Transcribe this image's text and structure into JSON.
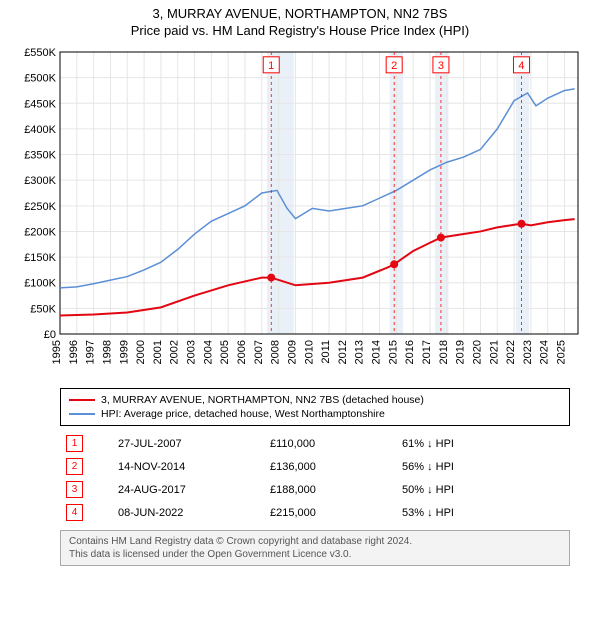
{
  "title_line1": "3, MURRAY AVENUE, NORTHAMPTON, NN2 7BS",
  "title_line2": "Price paid vs. HM Land Registry's House Price Index (HPI)",
  "chart": {
    "type": "line",
    "background_color": "#ffffff",
    "grid_color": "#e6e6e6",
    "band_color": "#eaf0f8",
    "x_years": [
      1995,
      1996,
      1997,
      1998,
      1999,
      2000,
      2001,
      2002,
      2003,
      2004,
      2005,
      2006,
      2007,
      2008,
      2009,
      2010,
      2011,
      2012,
      2013,
      2014,
      2015,
      2016,
      2017,
      2018,
      2019,
      2020,
      2021,
      2022,
      2023,
      2024,
      2025
    ],
    "x_min": 1995,
    "x_max": 2025.8,
    "ylim": [
      0,
      550000
    ],
    "ytick_step": 50000,
    "y_ticks": [
      "£0",
      "£50K",
      "£100K",
      "£150K",
      "£200K",
      "£250K",
      "£300K",
      "£350K",
      "£400K",
      "£450K",
      "£500K",
      "£550K"
    ],
    "shaded_bands": [
      {
        "from": 2007.3,
        "to": 2008.9
      },
      {
        "from": 2014.6,
        "to": 2015.4
      },
      {
        "from": 2017.3,
        "to": 2018.1
      },
      {
        "from": 2022.1,
        "to": 2022.9
      }
    ],
    "markers": [
      {
        "n": "1",
        "x": 2007.56,
        "y_badge": 525000
      },
      {
        "n": "2",
        "x": 2014.87,
        "y_badge": 525000
      },
      {
        "n": "3",
        "x": 2017.65,
        "y_badge": 525000
      },
      {
        "n": "4",
        "x": 2022.44,
        "y_badge": 525000
      }
    ],
    "series_hpi": {
      "label": "HPI: Average price, detached house, West Northamptonshire",
      "color": "#5b8fd6",
      "line_width": 1.5,
      "points": [
        [
          1995,
          90000
        ],
        [
          1996,
          92000
        ],
        [
          1997,
          98000
        ],
        [
          1998,
          105000
        ],
        [
          1999,
          112000
        ],
        [
          2000,
          125000
        ],
        [
          2001,
          140000
        ],
        [
          2002,
          165000
        ],
        [
          2003,
          195000
        ],
        [
          2004,
          220000
        ],
        [
          2005,
          235000
        ],
        [
          2006,
          250000
        ],
        [
          2007,
          275000
        ],
        [
          2007.9,
          280000
        ],
        [
          2008.5,
          245000
        ],
        [
          2009,
          225000
        ],
        [
          2010,
          245000
        ],
        [
          2011,
          240000
        ],
        [
          2012,
          245000
        ],
        [
          2013,
          250000
        ],
        [
          2014,
          265000
        ],
        [
          2015,
          280000
        ],
        [
          2016,
          300000
        ],
        [
          2017,
          320000
        ],
        [
          2018,
          335000
        ],
        [
          2019,
          345000
        ],
        [
          2020,
          360000
        ],
        [
          2021,
          400000
        ],
        [
          2022,
          455000
        ],
        [
          2022.8,
          470000
        ],
        [
          2023.3,
          445000
        ],
        [
          2024,
          460000
        ],
        [
          2025,
          475000
        ],
        [
          2025.6,
          478000
        ]
      ]
    },
    "series_price": {
      "label": "3, MURRAY AVENUE, NORTHAMPTON, NN2 7BS (detached house)",
      "color": "#e30613",
      "line_width": 2,
      "points": [
        [
          1995,
          36000
        ],
        [
          1997,
          38000
        ],
        [
          1999,
          42000
        ],
        [
          2001,
          52000
        ],
        [
          2003,
          75000
        ],
        [
          2005,
          95000
        ],
        [
          2007,
          110000
        ],
        [
          2007.56,
          110000
        ],
        [
          2009,
          95000
        ],
        [
          2011,
          100000
        ],
        [
          2013,
          110000
        ],
        [
          2014.5,
          130000
        ],
        [
          2014.87,
          136000
        ],
        [
          2016,
          162000
        ],
        [
          2017,
          178000
        ],
        [
          2017.65,
          188000
        ],
        [
          2018,
          190000
        ],
        [
          2019,
          195000
        ],
        [
          2020,
          200000
        ],
        [
          2021,
          208000
        ],
        [
          2022,
          213000
        ],
        [
          2022.44,
          215000
        ],
        [
          2023,
          212000
        ],
        [
          2024,
          218000
        ],
        [
          2025,
          222000
        ],
        [
          2025.6,
          224000
        ]
      ],
      "sale_dots": [
        {
          "x": 2007.56,
          "y": 110000
        },
        {
          "x": 2014.87,
          "y": 136000
        },
        {
          "x": 2017.65,
          "y": 188000
        },
        {
          "x": 2022.44,
          "y": 215000
        }
      ]
    }
  },
  "legend": {
    "item1_color": "#e30613",
    "item1_label": "3, MURRAY AVENUE, NORTHAMPTON, NN2 7BS (detached house)",
    "item2_color": "#5b8fd6",
    "item2_label": "HPI: Average price, detached house, West Northamptonshire"
  },
  "sales": [
    {
      "n": "1",
      "date": "27-JUL-2007",
      "price": "£110,000",
      "vs": "61% ↓ HPI"
    },
    {
      "n": "2",
      "date": "14-NOV-2014",
      "price": "£136,000",
      "vs": "56% ↓ HPI"
    },
    {
      "n": "3",
      "date": "24-AUG-2017",
      "price": "£188,000",
      "vs": "50% ↓ HPI"
    },
    {
      "n": "4",
      "date": "08-JUN-2022",
      "price": "£215,000",
      "vs": "53% ↓ HPI"
    }
  ],
  "footer_line1": "Contains HM Land Registry data © Crown copyright and database right 2024.",
  "footer_line2": "This data is licensed under the Open Government Licence v3.0."
}
